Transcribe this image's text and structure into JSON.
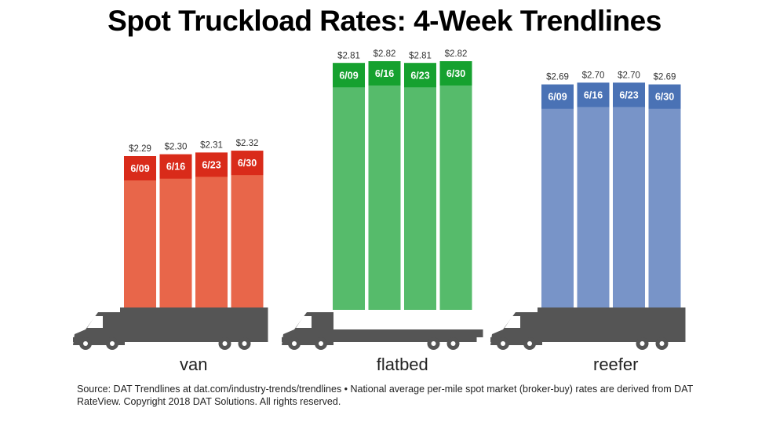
{
  "title": "Spot Truckload Rates: 4-Week Trendlines",
  "source": "Source: DAT Trendlines at dat.com/industry-trends/trendlines • National average per-mile spot market (broker-buy) rates are derived from DAT RateView. Copyright 2018 DAT Solutions. All rights reserved.",
  "chart_data": {
    "type": "bar",
    "categories": [
      "6/09",
      "6/16",
      "6/23",
      "6/30"
    ],
    "series": [
      {
        "name": "van",
        "values": [
          2.29,
          2.3,
          2.31,
          2.32
        ],
        "labels": [
          "$2.29",
          "$2.30",
          "$2.31",
          "$2.32"
        ],
        "color": "#e8664a",
        "cap_color": "#d92b1a"
      },
      {
        "name": "flatbed",
        "values": [
          2.81,
          2.82,
          2.81,
          2.82
        ],
        "labels": [
          "$2.81",
          "$2.82",
          "$2.81",
          "$2.82"
        ],
        "color": "#56bb6b",
        "cap_color": "#16a12f"
      },
      {
        "name": "reefer",
        "values": [
          2.69,
          2.7,
          2.7,
          2.69
        ],
        "labels": [
          "$2.69",
          "$2.70",
          "$2.70",
          "$2.69"
        ],
        "color": "#7894c8",
        "cap_color": "#4a72b5"
      }
    ],
    "truck_color": "#555555"
  }
}
